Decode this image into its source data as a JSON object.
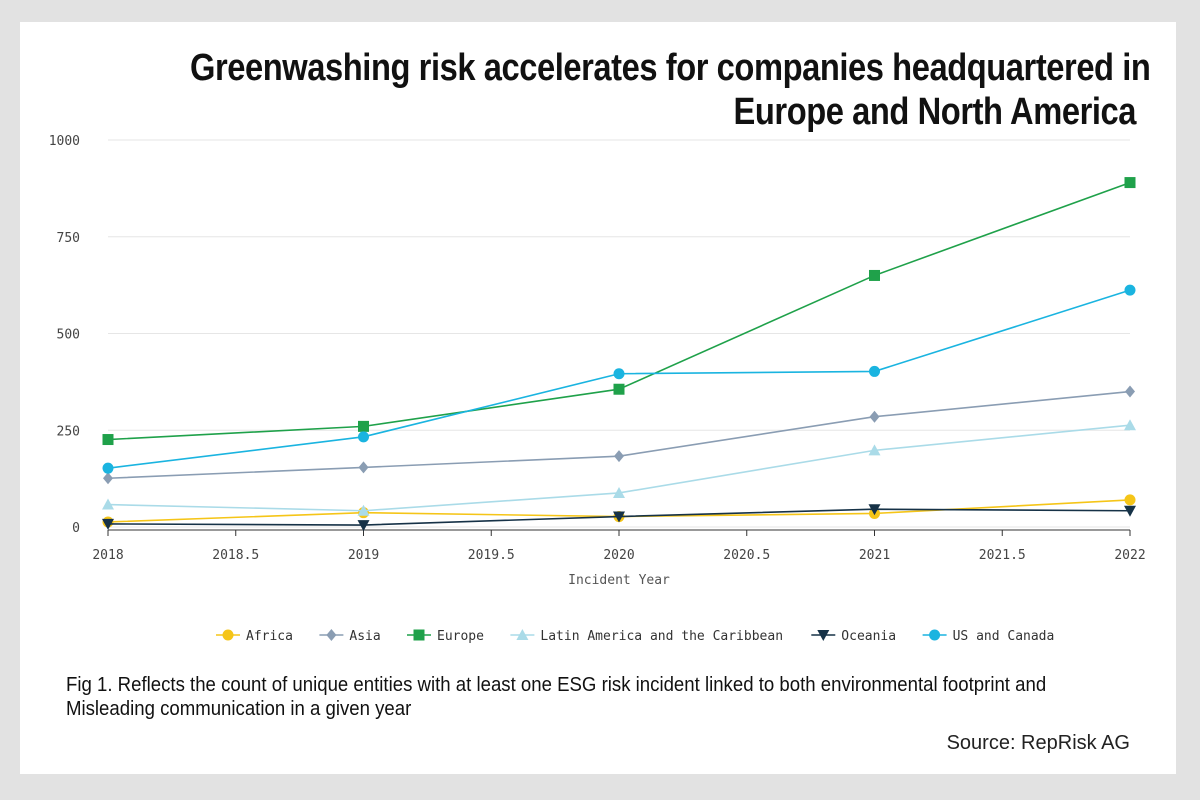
{
  "chart_data": {
    "type": "line",
    "title": "Greenwashing risk accelerates for companies headquartered in Europe and North America",
    "title_lines": [
      "Greenwashing risk accelerates for companies headquartered in",
      "Europe and North America"
    ],
    "xlabel": "Incident Year",
    "ylabel": "",
    "x": [
      2018,
      2019,
      2020,
      2021,
      2022
    ],
    "xlim": [
      2018,
      2022
    ],
    "ylim": [
      0,
      1000
    ],
    "x_ticks": [
      "2018",
      "2018.5",
      "2019",
      "2019.5",
      "2020",
      "2020.5",
      "2021",
      "2021.5",
      "2022"
    ],
    "x_tick_values": [
      2018,
      2018.5,
      2019,
      2019.5,
      2020,
      2020.5,
      2021,
      2021.5,
      2022
    ],
    "y_ticks": [
      "0",
      "250",
      "500",
      "750",
      "1000"
    ],
    "y_tick_values": [
      0,
      250,
      500,
      750,
      1000
    ],
    "grid": true,
    "legend_position": "bottom",
    "series": [
      {
        "name": "Africa",
        "marker": "circle",
        "color": "#f5c518",
        "values": [
          13,
          37,
          27,
          35,
          70
        ]
      },
      {
        "name": "Asia",
        "marker": "diamond",
        "color": "#8a9db3",
        "values": [
          126,
          154,
          183,
          285,
          350
        ]
      },
      {
        "name": "Europe",
        "marker": "square",
        "color": "#1fa14a",
        "values": [
          226,
          260,
          356,
          650,
          890
        ]
      },
      {
        "name": "Latin America and the Caribbean",
        "marker": "triangle-up",
        "color": "#aadbe8",
        "values": [
          58,
          42,
          88,
          198,
          263
        ]
      },
      {
        "name": "Oceania",
        "marker": "triangle-down",
        "color": "#163247",
        "values": [
          8,
          5,
          27,
          46,
          42
        ]
      },
      {
        "name": "US and Canada",
        "marker": "circle",
        "color": "#1ab4e0",
        "values": [
          152,
          233,
          396,
          402,
          612
        ]
      }
    ]
  },
  "caption": "Fig 1. Reflects the count of unique entities with at least one ESG risk incident linked to both environmental footprint and Misleading communication in a given year",
  "source": "Source: RepRisk AG"
}
